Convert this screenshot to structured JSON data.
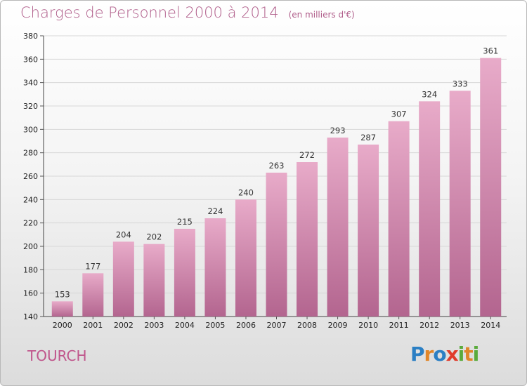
{
  "title": "Charges de Personnel 2000 à 2014",
  "subtitle": "(en milliers d'€)",
  "city": "TOURCH",
  "logo_letters": [
    {
      "ch": "P",
      "color": "#2b7fc4"
    },
    {
      "ch": "r",
      "color": "#e0862a"
    },
    {
      "ch": "o",
      "color": "#2b7fc4"
    },
    {
      "ch": "x",
      "color": "#e03c2c"
    },
    {
      "ch": "i",
      "color": "#5aab3c"
    },
    {
      "ch": "t",
      "color": "#e0862a"
    },
    {
      "ch": "i",
      "color": "#5aab3c"
    }
  ],
  "colors": {
    "bar_top": "#e8abc9",
    "bar_bottom": "#b3658f",
    "title": "#b05d8a",
    "city": "#c0568c"
  },
  "chart_data": {
    "type": "bar",
    "categories": [
      "2000",
      "2001",
      "2002",
      "2003",
      "2004",
      "2005",
      "2006",
      "2007",
      "2008",
      "2009",
      "2010",
      "2011",
      "2012",
      "2013",
      "2014"
    ],
    "values": [
      153,
      177,
      204,
      202,
      215,
      224,
      240,
      263,
      272,
      293,
      287,
      307,
      324,
      333,
      361
    ],
    "title": "Charges de Personnel 2000 à 2014",
    "subtitle": "(en milliers d'€)",
    "ylim": [
      140,
      380
    ],
    "yticks": [
      140,
      160,
      180,
      200,
      220,
      240,
      260,
      280,
      300,
      320,
      340,
      360,
      380
    ],
    "grid": true
  }
}
